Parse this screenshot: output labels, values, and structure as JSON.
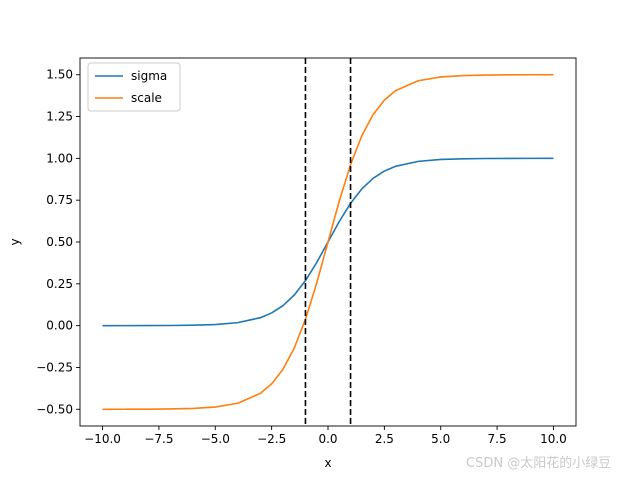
{
  "chart_data": {
    "type": "line",
    "title": "",
    "xlabel": "x",
    "ylabel": "y",
    "xlim": [
      -11.0,
      11.0
    ],
    "ylim": [
      -0.6,
      1.6
    ],
    "xticks": [
      -10.0,
      -7.5,
      -5.0,
      -2.5,
      0.0,
      2.5,
      5.0,
      7.5,
      10.0
    ],
    "xtick_labels": [
      "−10.0",
      "−7.5",
      "−5.0",
      "−2.5",
      "0.0",
      "2.5",
      "5.0",
      "7.5",
      "10.0"
    ],
    "yticks": [
      -0.5,
      -0.25,
      0.0,
      0.25,
      0.5,
      0.75,
      1.0,
      1.25,
      1.5
    ],
    "ytick_labels": [
      "−0.50",
      "−0.25",
      "0.00",
      "0.25",
      "0.50",
      "0.75",
      "1.00",
      "1.25",
      "1.50"
    ],
    "grid": false,
    "legend_position": "upper-left",
    "series": [
      {
        "name": "sigma",
        "color": "#1f77b4",
        "x": [
          -10,
          -9,
          -8,
          -7,
          -6,
          -5,
          -4,
          -3,
          -2.5,
          -2,
          -1.5,
          -1,
          -0.5,
          0,
          0.5,
          1,
          1.5,
          2,
          2.5,
          3,
          4,
          5,
          6,
          7,
          8,
          9,
          10
        ],
        "values": [
          0.0,
          0.0001,
          0.0003,
          0.0009,
          0.0025,
          0.0067,
          0.018,
          0.0474,
          0.0759,
          0.1192,
          0.1824,
          0.2689,
          0.3775,
          0.5,
          0.6225,
          0.7311,
          0.8176,
          0.8808,
          0.9241,
          0.9526,
          0.982,
          0.9933,
          0.9975,
          0.9991,
          0.9997,
          0.9999,
          1.0
        ]
      },
      {
        "name": "scale",
        "color": "#ff7f0e",
        "x": [
          -10,
          -9,
          -8,
          -7,
          -6,
          -5,
          -4,
          -3,
          -2.5,
          -2,
          -1.5,
          -1,
          -0.5,
          0,
          0.5,
          1,
          1.5,
          2,
          2.5,
          3,
          4,
          5,
          6,
          7,
          8,
          9,
          10
        ],
        "values": [
          -0.5,
          -0.4998,
          -0.4993,
          -0.4982,
          -0.495,
          -0.4866,
          -0.464,
          -0.4051,
          -0.3483,
          -0.2616,
          -0.1353,
          0.0379,
          0.255,
          0.5,
          0.745,
          0.9621,
          1.1353,
          1.2616,
          1.3483,
          1.4051,
          1.464,
          1.4866,
          1.495,
          1.4982,
          1.4993,
          1.4998,
          1.5
        ]
      }
    ],
    "vertical_lines": [
      {
        "x": -1.0,
        "color": "#000000",
        "style": "dashed"
      },
      {
        "x": 1.0,
        "color": "#000000",
        "style": "dashed"
      }
    ]
  },
  "watermark": "CSDN @太阳花的小绿豆"
}
